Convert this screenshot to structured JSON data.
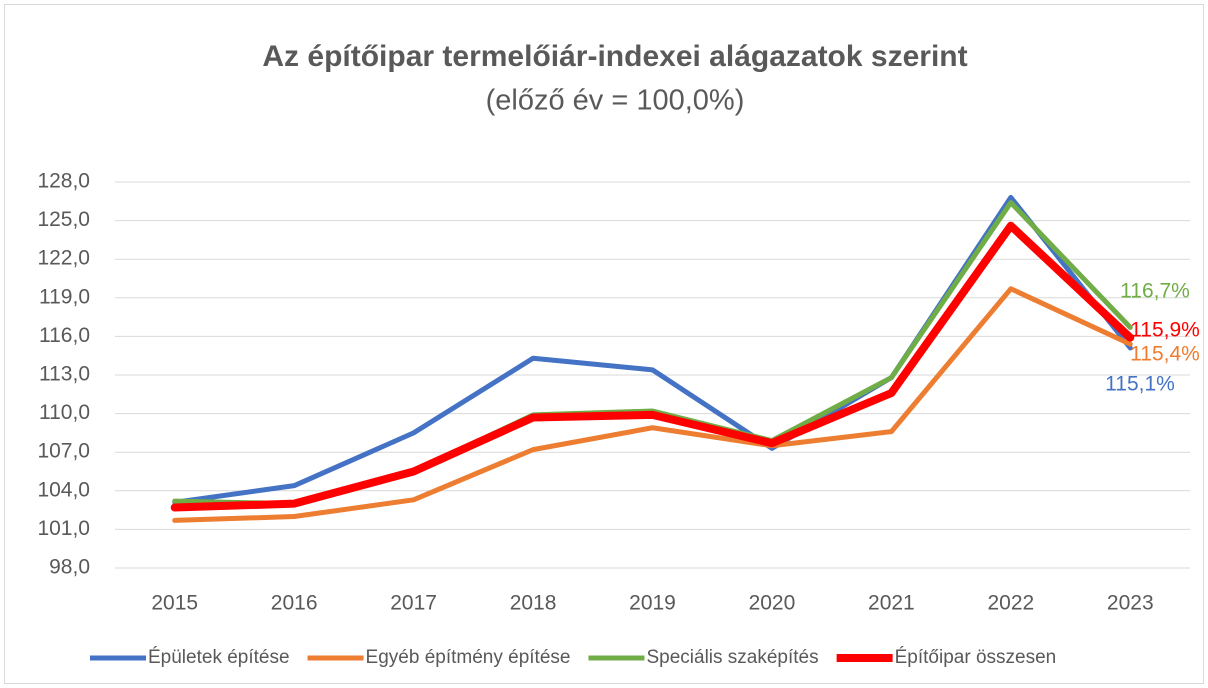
{
  "chart_data": {
    "type": "line",
    "title": "Az építőipar termelőiár-indexei alágazatok szerint",
    "subtitle": "(előző év = 100,0%)",
    "categories": [
      "2015",
      "2016",
      "2017",
      "2018",
      "2019",
      "2020",
      "2021",
      "2022",
      "2023"
    ],
    "series": [
      {
        "name": "Épületek építése",
        "color": "#4472c4",
        "values": [
          103.1,
          104.4,
          108.5,
          114.3,
          113.4,
          107.3,
          112.8,
          126.8,
          115.1
        ],
        "value_labels": [
          null,
          null,
          null,
          null,
          null,
          null,
          null,
          null,
          "115,1%"
        ]
      },
      {
        "name": "Egyéb építmény építése",
        "color": "#ed7d31",
        "values": [
          101.7,
          102.0,
          103.3,
          107.2,
          108.9,
          107.5,
          108.6,
          119.7,
          115.4
        ],
        "value_labels": [
          null,
          null,
          null,
          null,
          null,
          null,
          null,
          null,
          "115,4%"
        ]
      },
      {
        "name": "Speciális szaképítés",
        "color": "#70ad47",
        "values": [
          103.2,
          103.0,
          105.5,
          109.9,
          110.2,
          107.9,
          112.8,
          126.4,
          116.7
        ],
        "value_labels": [
          null,
          null,
          null,
          null,
          null,
          null,
          null,
          null,
          "116,7%"
        ]
      },
      {
        "name": "Építőipar összesen",
        "color": "#ff0000",
        "values": [
          102.7,
          103.0,
          105.5,
          109.7,
          109.9,
          107.7,
          111.6,
          124.6,
          115.9
        ],
        "value_labels": [
          null,
          null,
          null,
          null,
          null,
          null,
          null,
          null,
          "115,9%"
        ]
      }
    ],
    "ylim": [
      98,
      128
    ],
    "yticks": [
      {
        "value": 98,
        "label": "98,0"
      },
      {
        "value": 101,
        "label": "101,0"
      },
      {
        "value": 104,
        "label": "104,0"
      },
      {
        "value": 107,
        "label": "107,0"
      },
      {
        "value": 110,
        "label": "110,0"
      },
      {
        "value": 113,
        "label": "113,0"
      },
      {
        "value": 116,
        "label": "116,0"
      },
      {
        "value": 119,
        "label": "119,0"
      },
      {
        "value": 122,
        "label": "122,0"
      },
      {
        "value": 125,
        "label": "125,0"
      },
      {
        "value": 128,
        "label": "128,0"
      }
    ],
    "grid": true,
    "legend": "bottom"
  }
}
